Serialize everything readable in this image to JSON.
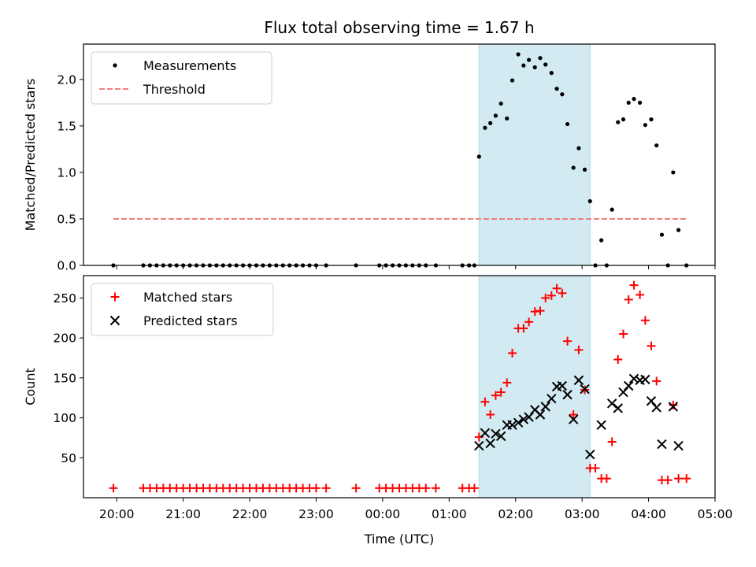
{
  "figure": {
    "title": "Flux total observing time = 1.67 h",
    "xlabel": "Time (UTC)",
    "x_ticks": [
      "20:00",
      "21:00",
      "22:00",
      "23:00",
      "00:00",
      "01:00",
      "02:00",
      "03:00",
      "04:00",
      "05:00"
    ],
    "x_range_hours": [
      19.5,
      29.0
    ],
    "highlight_span_hours": [
      25.45,
      27.12
    ],
    "highlight_color": "#add8e6",
    "colors": {
      "measurements": "#000000",
      "threshold": "#f08080",
      "matched": "#ff0000",
      "predicted": "#000000"
    }
  },
  "chart_data": [
    {
      "type": "scatter",
      "ylabel": "Matched/Predicted stars",
      "ylim": [
        0,
        2.38
      ],
      "yticks": [
        0.0,
        0.5,
        1.0,
        1.5,
        2.0
      ],
      "y_tick_labels": [
        "0.0",
        "0.5",
        "1.0",
        "1.5",
        "2.0"
      ],
      "legend_position": "top-left",
      "series": [
        {
          "name": "Measurements",
          "marker": "dot",
          "points": [
            [
              19.95,
              0
            ],
            [
              20.4,
              0
            ],
            [
              20.5,
              0
            ],
            [
              20.6,
              0
            ],
            [
              20.7,
              0
            ],
            [
              20.8,
              0
            ],
            [
              20.9,
              0
            ],
            [
              21.0,
              0
            ],
            [
              21.1,
              0
            ],
            [
              21.2,
              0
            ],
            [
              21.3,
              0
            ],
            [
              21.4,
              0
            ],
            [
              21.5,
              0
            ],
            [
              21.6,
              0
            ],
            [
              21.7,
              0
            ],
            [
              21.8,
              0
            ],
            [
              21.9,
              0
            ],
            [
              22.0,
              0
            ],
            [
              22.1,
              0
            ],
            [
              22.2,
              0
            ],
            [
              22.3,
              0
            ],
            [
              22.4,
              0
            ],
            [
              22.5,
              0
            ],
            [
              22.6,
              0
            ],
            [
              22.7,
              0
            ],
            [
              22.8,
              0
            ],
            [
              22.9,
              0
            ],
            [
              23.0,
              0
            ],
            [
              23.15,
              0
            ],
            [
              23.6,
              0
            ],
            [
              23.95,
              0
            ],
            [
              24.05,
              0
            ],
            [
              24.15,
              0
            ],
            [
              24.25,
              0
            ],
            [
              24.35,
              0
            ],
            [
              24.45,
              0
            ],
            [
              24.55,
              0
            ],
            [
              24.65,
              0
            ],
            [
              24.8,
              0
            ],
            [
              25.2,
              0
            ],
            [
              25.3,
              0
            ],
            [
              25.38,
              0
            ],
            [
              25.45,
              1.17
            ],
            [
              25.54,
              1.48
            ],
            [
              25.62,
              1.53
            ],
            [
              25.7,
              1.61
            ],
            [
              25.78,
              1.74
            ],
            [
              25.87,
              1.58
            ],
            [
              25.95,
              1.99
            ],
            [
              26.04,
              2.27
            ],
            [
              26.12,
              2.15
            ],
            [
              26.2,
              2.21
            ],
            [
              26.29,
              2.13
            ],
            [
              26.37,
              2.23
            ],
            [
              26.45,
              2.16
            ],
            [
              26.54,
              2.07
            ],
            [
              26.62,
              1.9
            ],
            [
              26.7,
              1.84
            ],
            [
              26.78,
              1.52
            ],
            [
              26.87,
              1.05
            ],
            [
              26.95,
              1.26
            ],
            [
              27.04,
              1.03
            ],
            [
              27.12,
              0.69
            ],
            [
              27.2,
              0
            ],
            [
              27.29,
              0.27
            ],
            [
              27.37,
              0
            ],
            [
              27.45,
              0.6
            ],
            [
              27.54,
              1.54
            ],
            [
              27.62,
              1.57
            ],
            [
              27.7,
              1.75
            ],
            [
              27.78,
              1.79
            ],
            [
              27.87,
              1.75
            ],
            [
              27.95,
              1.51
            ],
            [
              28.04,
              1.57
            ],
            [
              28.12,
              1.29
            ],
            [
              28.2,
              0.33
            ],
            [
              28.29,
              0
            ],
            [
              28.37,
              1.0
            ],
            [
              28.45,
              0.38
            ],
            [
              28.57,
              0
            ]
          ]
        },
        {
          "name": "Threshold",
          "marker": "dashed-line",
          "points": [
            [
              19.95,
              0.5
            ],
            [
              28.57,
              0.5
            ]
          ]
        }
      ]
    },
    {
      "type": "scatter",
      "ylabel": "Count",
      "ylim": [
        0,
        278
      ],
      "yticks": [
        50,
        100,
        150,
        200,
        250
      ],
      "y_tick_labels": [
        "50",
        "100",
        "150",
        "200",
        "250"
      ],
      "legend_position": "top-left",
      "series": [
        {
          "name": "Matched stars",
          "marker": "plus",
          "points": [
            [
              19.95,
              12
            ],
            [
              20.4,
              12
            ],
            [
              20.5,
              12
            ],
            [
              20.6,
              12
            ],
            [
              20.7,
              12
            ],
            [
              20.8,
              12
            ],
            [
              20.9,
              12
            ],
            [
              21.0,
              12
            ],
            [
              21.1,
              12
            ],
            [
              21.2,
              12
            ],
            [
              21.3,
              12
            ],
            [
              21.4,
              12
            ],
            [
              21.5,
              12
            ],
            [
              21.6,
              12
            ],
            [
              21.7,
              12
            ],
            [
              21.8,
              12
            ],
            [
              21.9,
              12
            ],
            [
              22.0,
              12
            ],
            [
              22.1,
              12
            ],
            [
              22.2,
              12
            ],
            [
              22.3,
              12
            ],
            [
              22.4,
              12
            ],
            [
              22.5,
              12
            ],
            [
              22.6,
              12
            ],
            [
              22.7,
              12
            ],
            [
              22.8,
              12
            ],
            [
              22.9,
              12
            ],
            [
              23.0,
              12
            ],
            [
              23.15,
              12
            ],
            [
              23.6,
              12
            ],
            [
              23.95,
              12
            ],
            [
              24.05,
              12
            ],
            [
              24.15,
              12
            ],
            [
              24.25,
              12
            ],
            [
              24.35,
              12
            ],
            [
              24.45,
              12
            ],
            [
              24.55,
              12
            ],
            [
              24.65,
              12
            ],
            [
              24.8,
              12
            ],
            [
              25.2,
              12
            ],
            [
              25.3,
              12
            ],
            [
              25.38,
              12
            ],
            [
              25.45,
              76
            ],
            [
              25.54,
              120
            ],
            [
              25.62,
              104
            ],
            [
              25.7,
              128
            ],
            [
              25.78,
              132
            ],
            [
              25.87,
              144
            ],
            [
              25.95,
              181
            ],
            [
              26.04,
              212
            ],
            [
              26.12,
              212
            ],
            [
              26.2,
              220
            ],
            [
              26.29,
              233
            ],
            [
              26.37,
              234
            ],
            [
              26.45,
              250
            ],
            [
              26.54,
              253
            ],
            [
              26.62,
              262
            ],
            [
              26.7,
              256
            ],
            [
              26.78,
              196
            ],
            [
              26.87,
              104
            ],
            [
              26.95,
              185
            ],
            [
              27.04,
              135
            ],
            [
              27.12,
              37
            ],
            [
              27.2,
              37
            ],
            [
              27.29,
              24
            ],
            [
              27.37,
              24
            ],
            [
              27.45,
              70
            ],
            [
              27.54,
              173
            ],
            [
              27.62,
              205
            ],
            [
              27.7,
              248
            ],
            [
              27.78,
              266
            ],
            [
              27.87,
              254
            ],
            [
              27.95,
              222
            ],
            [
              28.04,
              190
            ],
            [
              28.12,
              146
            ],
            [
              28.2,
              22
            ],
            [
              28.29,
              22
            ],
            [
              28.37,
              116
            ],
            [
              28.45,
              24
            ],
            [
              28.57,
              24
            ]
          ]
        },
        {
          "name": "Predicted stars",
          "marker": "x",
          "points": [
            [
              25.45,
              65
            ],
            [
              25.54,
              81
            ],
            [
              25.62,
              68
            ],
            [
              25.7,
              80
            ],
            [
              25.78,
              77
            ],
            [
              25.87,
              91
            ],
            [
              25.95,
              91
            ],
            [
              26.04,
              94
            ],
            [
              26.12,
              98
            ],
            [
              26.2,
              101
            ],
            [
              26.29,
              110
            ],
            [
              26.37,
              104
            ],
            [
              26.45,
              114
            ],
            [
              26.54,
              124
            ],
            [
              26.62,
              139
            ],
            [
              26.7,
              140
            ],
            [
              26.78,
              129
            ],
            [
              26.87,
              98
            ],
            [
              26.95,
              147
            ],
            [
              27.04,
              136
            ],
            [
              27.12,
              54
            ],
            [
              27.29,
              91
            ],
            [
              27.45,
              118
            ],
            [
              27.54,
              112
            ],
            [
              27.62,
              132
            ],
            [
              27.7,
              140
            ],
            [
              27.78,
              149
            ],
            [
              27.87,
              147
            ],
            [
              27.95,
              148
            ],
            [
              28.04,
              121
            ],
            [
              28.12,
              113
            ],
            [
              28.2,
              67
            ],
            [
              28.37,
              114
            ],
            [
              28.45,
              65
            ]
          ]
        }
      ]
    }
  ]
}
